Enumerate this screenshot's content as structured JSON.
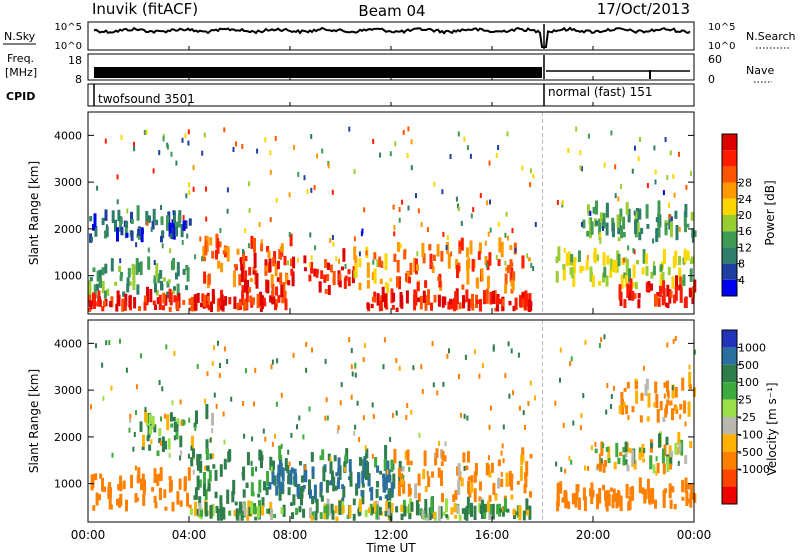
{
  "header": {
    "station": "Inuvik (fitACF)",
    "beam": "Beam 04",
    "date": "17/Oct/2013"
  },
  "nsky_panel": {
    "left_label": "N.Sky",
    "right_label": "N.Search",
    "left_ticks": [
      "10^5",
      "10^0"
    ],
    "right_ticks": [
      "10^5",
      "10^0"
    ]
  },
  "freq_panel": {
    "left_label_1": "Freq.",
    "left_label_2": "[MHz]",
    "right_label": "Nave",
    "left_ticks": [
      "18",
      "8"
    ],
    "right_ticks": [
      "60",
      "0"
    ]
  },
  "cpid_panel": {
    "label": "CPID",
    "modes": [
      {
        "name": "twofsound",
        "id": "3501"
      },
      {
        "name": "normal (fast)",
        "id": "151"
      }
    ]
  },
  "time_axis": {
    "label": "Time UT",
    "ticks": [
      "00:00",
      "04:00",
      "08:00",
      "12:00",
      "16:00",
      "20:00",
      "00:00"
    ]
  },
  "range_axis": {
    "label": "Slant Range [km]",
    "ticks": [
      "1000",
      "2000",
      "3000",
      "4000"
    ]
  },
  "power_colorbar": {
    "label": "Power [dB]",
    "ticks": [
      "4",
      "8",
      "12",
      "16",
      "20",
      "24",
      "28"
    ],
    "colors": [
      "#0000ee",
      "#1f3fa0",
      "#2e7d6a",
      "#3f9a55",
      "#9acd32",
      "#ffd700",
      "#ff9900",
      "#ff5500",
      "#ff1a00",
      "#dd0000"
    ]
  },
  "velocity_colorbar": {
    "label": "Velocity [m s⁻¹]",
    "ticks": [
      "1000",
      "500",
      "100",
      "25",
      "-25",
      "-100",
      "-500",
      "-1000"
    ],
    "colors": [
      "#2233bb",
      "#2a6fa0",
      "#2e7d4a",
      "#3caa3c",
      "#9be04a",
      "#b8b8b0",
      "#ffb000",
      "#ff7f00",
      "#ff4400",
      "#ee0000"
    ]
  },
  "chart_data": {
    "type": "heatmap",
    "x_range_hours": [
      0,
      24
    ],
    "y_range_km": [
      180,
      4500
    ],
    "mode_change_time": "18:00",
    "power_bands": [
      {
        "start": "00:00",
        "end": "04:00",
        "range_km": [
          500,
          1300
        ],
        "level_db": 12
      },
      {
        "start": "00:00",
        "end": "04:00",
        "range_km": [
          1700,
          2300
        ],
        "level_db": 8
      },
      {
        "start": "00:00",
        "end": "08:00",
        "range_km": [
          220,
          500
        ],
        "level_db": 28
      },
      {
        "start": "04:30",
        "end": "08:00",
        "range_km": [
          700,
          1900
        ],
        "level_db": 24
      },
      {
        "start": "06:00",
        "end": "10:30",
        "range_km": [
          500,
          1500
        ],
        "level_db": 28
      },
      {
        "start": "10:30",
        "end": "12:00",
        "range_km": [
          600,
          1600
        ],
        "level_db": 20
      },
      {
        "start": "12:00",
        "end": "17:30",
        "range_km": [
          600,
          1800
        ],
        "level_db": 24
      },
      {
        "start": "11:00",
        "end": "17:30",
        "range_km": [
          220,
          500
        ],
        "level_db": 28
      },
      {
        "start": "18:30",
        "end": "24:00",
        "range_km": [
          700,
          1500
        ],
        "level_db": 16
      },
      {
        "start": "21:00",
        "end": "24:00",
        "range_km": [
          300,
          800
        ],
        "level_db": 28
      },
      {
        "start": "19:30",
        "end": "24:00",
        "range_km": [
          1700,
          2500
        ],
        "level_db": 12
      }
    ],
    "velocity_bands": [
      {
        "start": "00:00",
        "end": "04:00",
        "range_km": [
          400,
          1300
        ],
        "velocity": -300
      },
      {
        "start": "02:00",
        "end": "05:00",
        "range_km": [
          1500,
          2600
        ],
        "velocity": 100
      },
      {
        "start": "04:00",
        "end": "12:30",
        "range_km": [
          500,
          1800
        ],
        "velocity": 200
      },
      {
        "start": "07:00",
        "end": "12:00",
        "range_km": [
          600,
          1500
        ],
        "velocity": 600
      },
      {
        "start": "04:00",
        "end": "12:00",
        "range_km": [
          200,
          450
        ],
        "velocity": 50
      },
      {
        "start": "12:00",
        "end": "17:30",
        "range_km": [
          600,
          1800
        ],
        "velocity": -150
      },
      {
        "start": "12:00",
        "end": "17:30",
        "range_km": [
          200,
          450
        ],
        "velocity": 80
      },
      {
        "start": "18:30",
        "end": "24:00",
        "range_km": [
          400,
          1000
        ],
        "velocity": -300
      },
      {
        "start": "20:00",
        "end": "24:00",
        "range_km": [
          1200,
          2000
        ],
        "velocity": 0
      },
      {
        "start": "21:00",
        "end": "24:00",
        "range_km": [
          2300,
          3300
        ],
        "velocity": -150
      }
    ]
  }
}
